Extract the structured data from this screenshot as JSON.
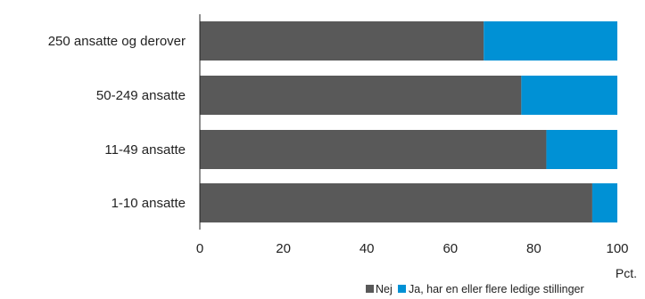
{
  "chart_data": {
    "type": "bar",
    "orientation": "horizontal",
    "stacked": true,
    "categories": [
      "250 ansatte og derover",
      "50-249 ansatte",
      "11-49 ansatte",
      "1-10 ansatte"
    ],
    "series": [
      {
        "name": "Nej",
        "values": [
          68,
          77,
          83,
          94
        ],
        "color": "#595959"
      },
      {
        "name": "Ja, har en eller flere ledige stillinger",
        "values": [
          32,
          23,
          17,
          6
        ],
        "color": "#0091d5"
      }
    ],
    "xlim": [
      0,
      100
    ],
    "xticks": [
      "0",
      "20",
      "40",
      "60",
      "80",
      "100"
    ],
    "xunit": "Pct.",
    "grid": false,
    "legend_position": "bottom-right"
  }
}
